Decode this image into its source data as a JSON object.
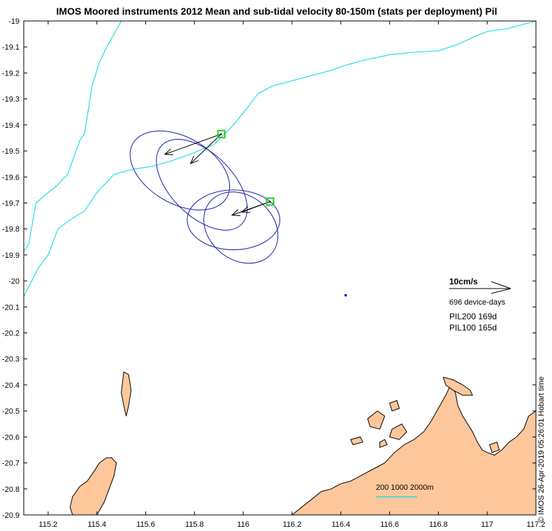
{
  "chart_data": {
    "type": "scatter",
    "title": "IMOS Moored instruments 2012 Mean and sub-tidal velocity 80-150m (stats per deployment) Pil",
    "xlabel": "",
    "ylabel": "",
    "xlim": [
      115.1,
      117.2
    ],
    "ylim": [
      -20.9,
      -19.0
    ],
    "x_ticks": [
      115.2,
      115.4,
      115.6,
      115.8,
      116,
      116.2,
      116.4,
      116.6,
      116.8,
      117,
      117.2
    ],
    "y_ticks": [
      -19,
      -19.1,
      -19.2,
      -19.3,
      -19.4,
      -19.5,
      -19.6,
      -19.7,
      -19.8,
      -19.9,
      -20,
      -20.1,
      -20.2,
      -20.3,
      -20.4,
      -20.5,
      -20.6,
      -20.7,
      -20.8,
      -20.9
    ],
    "grid": false,
    "colors": {
      "ellipse": "#1a1aa6",
      "arrow": "#000000",
      "station_marker": "#22cc22",
      "isobath": "#22e0e0",
      "land": "#fdc79b",
      "coast": "#000000",
      "dot": "#0000ff"
    },
    "stations": [
      {
        "name": "PIL200",
        "lon": 115.91,
        "lat": -19.435,
        "mean_velocity_cm_s": {
          "u": -9.2,
          "v": -3.3
        },
        "subtidal_arrow_cm_s": {
          "u": -5.0,
          "v": -4.8
        },
        "ellipses": [
          {
            "center": [
              115.74,
              -19.575
            ],
            "semi_major_deg": 0.222,
            "semi_minor_deg": 0.128,
            "angle_deg": 30
          },
          {
            "center": [
              115.83,
              -19.63
            ],
            "semi_major_deg": 0.23,
            "semi_minor_deg": 0.12,
            "angle_deg": 45
          }
        ]
      },
      {
        "name": "PIL100",
        "lon": 116.11,
        "lat": -19.695,
        "mean_velocity_cm_s": {
          "u": -6.2,
          "v": -2.2
        },
        "subtidal_arrow_cm_s": {
          "u": -4.6,
          "v": -1.7
        },
        "ellipses": [
          {
            "center": [
              115.96,
              -19.765
            ],
            "semi_major_deg": 0.19,
            "semi_minor_deg": 0.115,
            "angle_deg": 0
          },
          {
            "center": [
              115.99,
              -19.795
            ],
            "semi_major_deg": 0.165,
            "semi_minor_deg": 0.123,
            "angle_deg": 40
          }
        ]
      }
    ],
    "isolated_point": {
      "lon": 116.42,
      "lat": -20.055
    },
    "isobaths": [
      {
        "label": "200m",
        "points": [
          [
            115.1,
            -19.885
          ],
          [
            115.12,
            -19.86
          ],
          [
            115.15,
            -19.7
          ],
          [
            115.2,
            -19.66
          ],
          [
            115.24,
            -19.63
          ],
          [
            115.28,
            -19.59
          ],
          [
            115.33,
            -19.46
          ],
          [
            115.35,
            -19.43
          ],
          [
            115.38,
            -19.25
          ],
          [
            115.41,
            -19.16
          ],
          [
            115.44,
            -19.1
          ],
          [
            115.5,
            -19.0
          ]
        ]
      },
      {
        "label": "1000m",
        "points": [
          [
            115.1,
            -20.06
          ],
          [
            115.16,
            -19.95
          ],
          [
            115.2,
            -19.9
          ],
          [
            115.24,
            -19.8
          ],
          [
            115.29,
            -19.765
          ],
          [
            115.35,
            -19.73
          ],
          [
            115.4,
            -19.66
          ],
          [
            115.44,
            -19.62
          ],
          [
            115.47,
            -19.59
          ],
          [
            115.55,
            -19.57
          ],
          [
            115.62,
            -19.56
          ],
          [
            115.7,
            -19.54
          ],
          [
            115.79,
            -19.51
          ],
          [
            115.88,
            -19.475
          ],
          [
            115.96,
            -19.4
          ],
          [
            116.02,
            -19.33
          ],
          [
            116.06,
            -19.28
          ],
          [
            116.12,
            -19.25
          ],
          [
            116.2,
            -19.23
          ],
          [
            116.28,
            -19.21
          ],
          [
            116.36,
            -19.19
          ],
          [
            116.42,
            -19.17
          ],
          [
            116.5,
            -19.15
          ],
          [
            116.6,
            -19.13
          ],
          [
            116.7,
            -19.12
          ],
          [
            116.8,
            -19.115
          ],
          [
            116.88,
            -19.09
          ],
          [
            116.95,
            -19.06
          ],
          [
            117.0,
            -19.04
          ],
          [
            117.08,
            -19.03
          ],
          [
            117.2,
            -19.0
          ]
        ]
      }
    ],
    "land": {
      "mainland": [
        [
          116.2,
          -20.9
        ],
        [
          116.24,
          -20.87
        ],
        [
          116.28,
          -20.84
        ],
        [
          116.32,
          -20.81
        ],
        [
          116.36,
          -20.8
        ],
        [
          116.4,
          -20.78
        ],
        [
          116.44,
          -20.77
        ],
        [
          116.48,
          -20.75
        ],
        [
          116.54,
          -20.72
        ],
        [
          116.58,
          -20.7
        ],
        [
          116.62,
          -20.66
        ],
        [
          116.66,
          -20.63
        ],
        [
          116.7,
          -20.61
        ],
        [
          116.74,
          -20.58
        ],
        [
          116.77,
          -20.54
        ],
        [
          116.8,
          -20.49
        ],
        [
          116.83,
          -20.44
        ],
        [
          116.85,
          -20.4
        ],
        [
          116.87,
          -20.43
        ],
        [
          116.88,
          -20.48
        ],
        [
          116.9,
          -20.52
        ],
        [
          116.92,
          -20.55
        ],
        [
          116.94,
          -20.58
        ],
        [
          116.96,
          -20.62
        ],
        [
          116.98,
          -20.65
        ],
        [
          117.0,
          -20.66
        ],
        [
          117.03,
          -20.67
        ],
        [
          117.06,
          -20.65
        ],
        [
          117.09,
          -20.62
        ],
        [
          117.12,
          -20.6
        ],
        [
          117.15,
          -20.57
        ],
        [
          117.17,
          -20.52
        ],
        [
          117.2,
          -20.5
        ],
        [
          117.2,
          -20.9
        ]
      ],
      "islands": [
        {
          "name": "west-large",
          "points": [
            [
              115.3,
              -20.9
            ],
            [
              115.29,
              -20.87
            ],
            [
              115.3,
              -20.83
            ],
            [
              115.33,
              -20.79
            ],
            [
              115.36,
              -20.77
            ],
            [
              115.39,
              -20.73
            ],
            [
              115.41,
              -20.7
            ],
            [
              115.44,
              -20.68
            ],
            [
              115.46,
              -20.68
            ],
            [
              115.48,
              -20.7
            ],
            [
              115.47,
              -20.75
            ],
            [
              115.45,
              -20.8
            ],
            [
              115.43,
              -20.85
            ],
            [
              115.4,
              -20.9
            ]
          ]
        },
        {
          "name": "west-small",
          "points": [
            [
              115.51,
              -20.35
            ],
            [
              115.53,
              -20.36
            ],
            [
              115.54,
              -20.42
            ],
            [
              115.53,
              -20.48
            ],
            [
              115.52,
              -20.52
            ],
            [
              115.51,
              -20.48
            ],
            [
              115.5,
              -20.43
            ]
          ]
        },
        {
          "name": "mid-1",
          "points": [
            [
              116.6,
              -20.47
            ],
            [
              116.63,
              -20.46
            ],
            [
              116.64,
              -20.49
            ],
            [
              116.61,
              -20.5
            ]
          ]
        },
        {
          "name": "mid-2",
          "points": [
            [
              116.51,
              -20.53
            ],
            [
              116.55,
              -20.5
            ],
            [
              116.58,
              -20.52
            ],
            [
              116.56,
              -20.57
            ],
            [
              116.52,
              -20.56
            ]
          ]
        },
        {
          "name": "mid-3",
          "points": [
            [
              116.61,
              -20.57
            ],
            [
              116.65,
              -20.55
            ],
            [
              116.67,
              -20.58
            ],
            [
              116.64,
              -20.61
            ],
            [
              116.6,
              -20.6
            ]
          ]
        },
        {
          "name": "mid-4",
          "points": [
            [
              116.44,
              -20.61
            ],
            [
              116.48,
              -20.6
            ],
            [
              116.49,
              -20.62
            ],
            [
              116.45,
              -20.63
            ]
          ]
        },
        {
          "name": "mid-5",
          "points": [
            [
              116.56,
              -20.62
            ],
            [
              116.58,
              -20.61
            ],
            [
              116.59,
              -20.63
            ],
            [
              116.56,
              -20.64
            ]
          ]
        },
        {
          "name": "east-spit",
          "points": [
            [
              116.82,
              -20.37
            ],
            [
              116.86,
              -20.38
            ],
            [
              116.9,
              -20.4
            ],
            [
              116.93,
              -20.42
            ],
            [
              116.94,
              -20.44
            ],
            [
              116.9,
              -20.44
            ],
            [
              116.86,
              -20.42
            ],
            [
              116.83,
              -20.4
            ]
          ]
        },
        {
          "name": "east-1",
          "points": [
            [
              117.01,
              -20.63
            ],
            [
              117.04,
              -20.62
            ],
            [
              117.05,
              -20.65
            ],
            [
              117.02,
              -20.66
            ]
          ]
        }
      ]
    },
    "legend": {
      "scale_label": "10cm/s",
      "device_days": "696 device-days",
      "entries": [
        "PIL200 169d",
        "PIL100 165d"
      ],
      "placement": "right-middle"
    },
    "depth_legend": {
      "label": "200 1000 2000m"
    },
    "side_note": "© IMOS 26-Apr-2019 05:26:01 Hobart time"
  }
}
